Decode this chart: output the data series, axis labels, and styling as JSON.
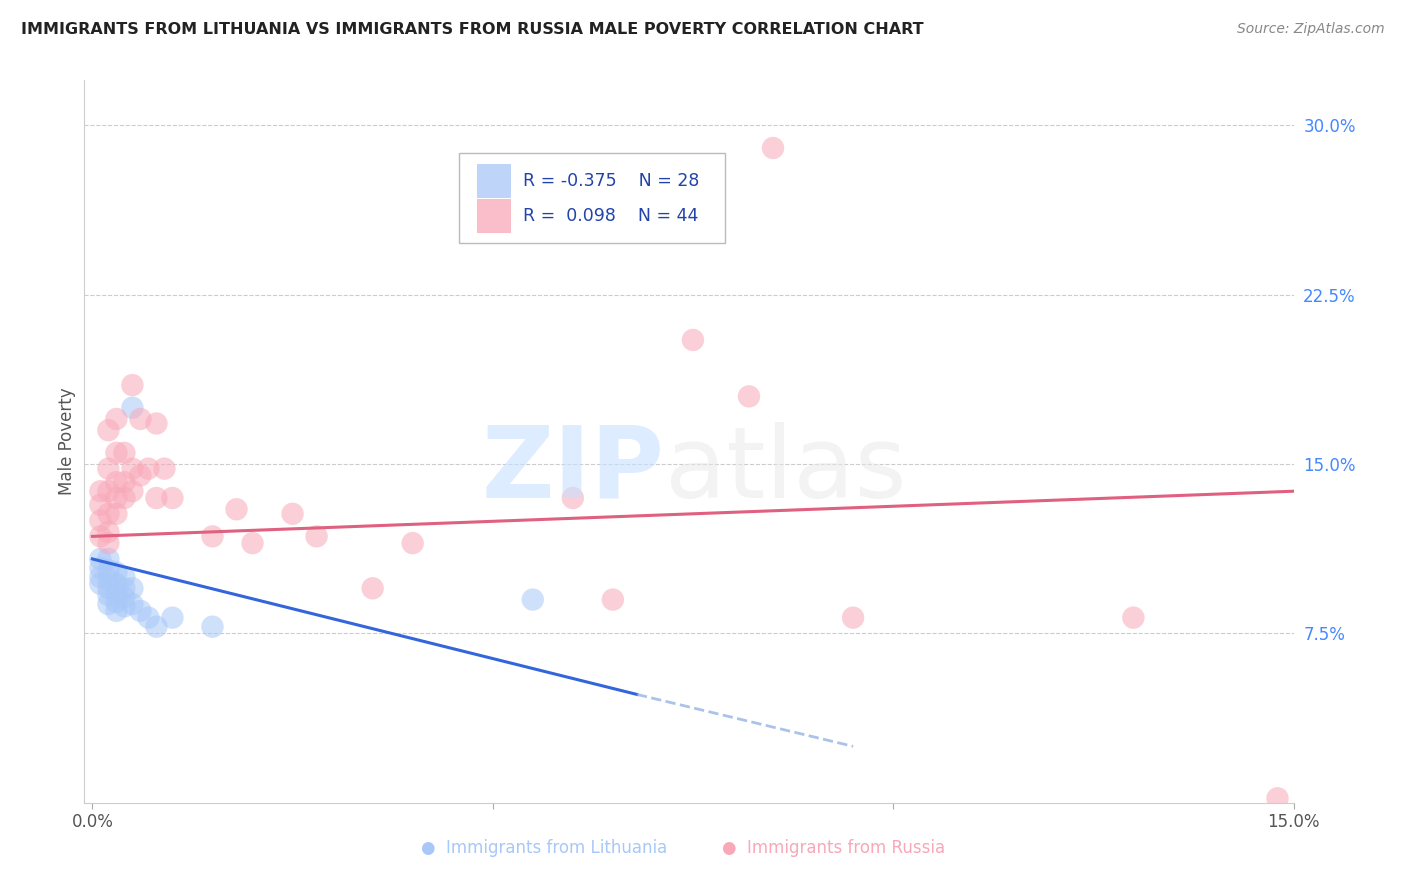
{
  "title": "IMMIGRANTS FROM LITHUANIA VS IMMIGRANTS FROM RUSSIA MALE POVERTY CORRELATION CHART",
  "source": "Source: ZipAtlas.com",
  "ylabel": "Male Poverty",
  "xlim": [
    0.0,
    0.15
  ],
  "ylim": [
    0.0,
    0.32
  ],
  "xticks": [
    0.0,
    0.05,
    0.1,
    0.15
  ],
  "xtick_labels": [
    "0.0%",
    "",
    "",
    "15.0%"
  ],
  "ytick_right": [
    0.3,
    0.225,
    0.15,
    0.075
  ],
  "ytick_labels_right": [
    "30.0%",
    "22.5%",
    "15.0%",
    "7.5%"
  ],
  "color_lithuania": "#a8c8f8",
  "color_russia": "#f8a8b8",
  "trendline_lith_x0": 0.0,
  "trendline_lith_y0": 0.108,
  "trendline_lith_x1": 0.068,
  "trendline_lith_y1": 0.048,
  "trendline_lith_dash_x0": 0.068,
  "trendline_lith_dash_y0": 0.048,
  "trendline_lith_dash_x1": 0.095,
  "trendline_lith_dash_y1": 0.025,
  "trendline_russia_x0": 0.0,
  "trendline_russia_y0": 0.118,
  "trendline_russia_x1": 0.15,
  "trendline_russia_y1": 0.138,
  "legend_text_color": "#2244aa",
  "legend_R1": "R = -0.375",
  "legend_N1": "N = 28",
  "legend_R2": "R =  0.098",
  "legend_N2": "N = 44",
  "lithuania_points": [
    [
      0.001,
      0.108
    ],
    [
      0.001,
      0.104
    ],
    [
      0.001,
      0.1
    ],
    [
      0.001,
      0.097
    ],
    [
      0.002,
      0.108
    ],
    [
      0.002,
      0.103
    ],
    [
      0.002,
      0.099
    ],
    [
      0.002,
      0.095
    ],
    [
      0.002,
      0.092
    ],
    [
      0.002,
      0.088
    ],
    [
      0.003,
      0.102
    ],
    [
      0.003,
      0.097
    ],
    [
      0.003,
      0.093
    ],
    [
      0.003,
      0.089
    ],
    [
      0.003,
      0.085
    ],
    [
      0.004,
      0.1
    ],
    [
      0.004,
      0.095
    ],
    [
      0.004,
      0.091
    ],
    [
      0.004,
      0.087
    ],
    [
      0.005,
      0.175
    ],
    [
      0.005,
      0.095
    ],
    [
      0.005,
      0.088
    ],
    [
      0.006,
      0.085
    ],
    [
      0.007,
      0.082
    ],
    [
      0.008,
      0.078
    ],
    [
      0.01,
      0.082
    ],
    [
      0.015,
      0.078
    ],
    [
      0.055,
      0.09
    ]
  ],
  "russia_points": [
    [
      0.001,
      0.138
    ],
    [
      0.001,
      0.132
    ],
    [
      0.001,
      0.125
    ],
    [
      0.001,
      0.118
    ],
    [
      0.002,
      0.165
    ],
    [
      0.002,
      0.148
    ],
    [
      0.002,
      0.138
    ],
    [
      0.002,
      0.128
    ],
    [
      0.002,
      0.12
    ],
    [
      0.002,
      0.115
    ],
    [
      0.003,
      0.17
    ],
    [
      0.003,
      0.155
    ],
    [
      0.003,
      0.142
    ],
    [
      0.003,
      0.135
    ],
    [
      0.003,
      0.128
    ],
    [
      0.004,
      0.155
    ],
    [
      0.004,
      0.142
    ],
    [
      0.004,
      0.135
    ],
    [
      0.005,
      0.185
    ],
    [
      0.005,
      0.148
    ],
    [
      0.005,
      0.138
    ],
    [
      0.006,
      0.17
    ],
    [
      0.006,
      0.145
    ],
    [
      0.007,
      0.148
    ],
    [
      0.008,
      0.168
    ],
    [
      0.008,
      0.135
    ],
    [
      0.009,
      0.148
    ],
    [
      0.01,
      0.135
    ],
    [
      0.015,
      0.118
    ],
    [
      0.018,
      0.13
    ],
    [
      0.02,
      0.115
    ],
    [
      0.025,
      0.128
    ],
    [
      0.028,
      0.118
    ],
    [
      0.035,
      0.095
    ],
    [
      0.04,
      0.115
    ],
    [
      0.048,
      0.255
    ],
    [
      0.06,
      0.135
    ],
    [
      0.065,
      0.09
    ],
    [
      0.075,
      0.205
    ],
    [
      0.082,
      0.18
    ],
    [
      0.085,
      0.29
    ],
    [
      0.095,
      0.082
    ],
    [
      0.13,
      0.082
    ],
    [
      0.148,
      0.002
    ]
  ]
}
